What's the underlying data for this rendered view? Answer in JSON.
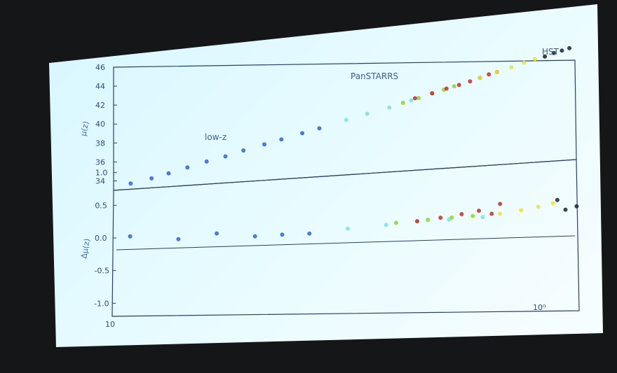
{
  "chart_data": [
    {
      "panel": "hubble-diagram",
      "type": "scatter",
      "ylabel": "μ(z)",
      "yticks": [
        "34",
        "36",
        "38",
        "40",
        "42",
        "44",
        "46"
      ],
      "ylim": [
        33,
        46
      ],
      "xscale": "log",
      "xlim": [
        0.01,
        1.4
      ],
      "annotations": [
        "low-z",
        "PanSTARRS",
        "HST"
      ],
      "series": [
        {
          "name": "low-z",
          "color": "#2f63d6",
          "x": [
            0.012,
            0.015,
            0.018,
            0.022,
            0.027,
            0.033,
            0.04,
            0.05,
            0.06,
            0.075,
            0.09
          ],
          "y": [
            33.6,
            34.0,
            34.4,
            34.9,
            35.4,
            35.8,
            36.3,
            36.8,
            37.2,
            37.7,
            38.1
          ]
        },
        {
          "color": "#7fe0d8",
          "x": [
            0.12,
            0.15,
            0.19,
            0.24,
            0.3
          ],
          "y": [
            38.8,
            39.3,
            39.8,
            40.4,
            41.0
          ]
        },
        {
          "color": "#8fd23c",
          "x": [
            0.22,
            0.26,
            0.3,
            0.34,
            0.38
          ],
          "y": [
            40.2,
            40.6,
            41.0,
            41.3,
            41.6
          ]
        },
        {
          "name": "PanSTARRS",
          "color": "#c0302a",
          "x": [
            0.25,
            0.3,
            0.35,
            0.4,
            0.45,
            0.5,
            0.55,
            0.6
          ],
          "y": [
            40.6,
            41.0,
            41.4,
            41.7,
            42.0,
            42.3,
            42.6,
            42.8
          ]
        },
        {
          "color": "#e8e43a",
          "x": [
            0.5,
            0.6,
            0.7,
            0.8,
            0.9,
            1.0
          ],
          "y": [
            42.3,
            42.8,
            43.2,
            43.6,
            43.9,
            44.1
          ]
        },
        {
          "name": "HST",
          "color": "#1a2430",
          "x": [
            1.0,
            1.1,
            1.2,
            1.3
          ],
          "y": [
            44.1,
            44.4,
            44.6,
            44.8
          ]
        }
      ]
    },
    {
      "panel": "residuals",
      "type": "scatter",
      "ylabel": "Δμ(z)",
      "yticks": [
        "1.0",
        "0.5",
        "0.0",
        "-0.5",
        "-1.0"
      ],
      "ylim": [
        -1.2,
        1.2
      ],
      "xscale": "log",
      "xlim": [
        0.01,
        1.4
      ],
      "xticks": [
        "10",
        "10⁰"
      ],
      "series": [
        {
          "color": "#2f63d6",
          "x": [
            0.012,
            0.02,
            0.03,
            0.045,
            0.06,
            0.08
          ],
          "y": [
            0.02,
            -0.03,
            0.05,
            0.0,
            0.02,
            0.03
          ]
        },
        {
          "color": "#7fe0d8",
          "x": [
            0.12,
            0.18,
            0.25,
            0.35,
            0.5
          ],
          "y": [
            0.1,
            0.15,
            0.2,
            0.22,
            0.25
          ]
        },
        {
          "color": "#8fd23c",
          "x": [
            0.2,
            0.28,
            0.36,
            0.45
          ],
          "y": [
            0.18,
            0.22,
            0.25,
            0.27
          ]
        },
        {
          "color": "#c0302a",
          "x": [
            0.25,
            0.32,
            0.4,
            0.48,
            0.55,
            0.6
          ],
          "y": [
            0.2,
            0.25,
            0.3,
            0.35,
            0.3,
            0.45
          ]
        },
        {
          "color": "#e8e43a",
          "x": [
            0.6,
            0.75,
            0.9,
            1.05
          ],
          "y": [
            0.3,
            0.35,
            0.4,
            0.45
          ]
        },
        {
          "color": "#1a2430",
          "x": [
            1.1,
            1.2,
            1.35
          ],
          "y": [
            0.5,
            0.35,
            0.4
          ]
        }
      ]
    }
  ]
}
